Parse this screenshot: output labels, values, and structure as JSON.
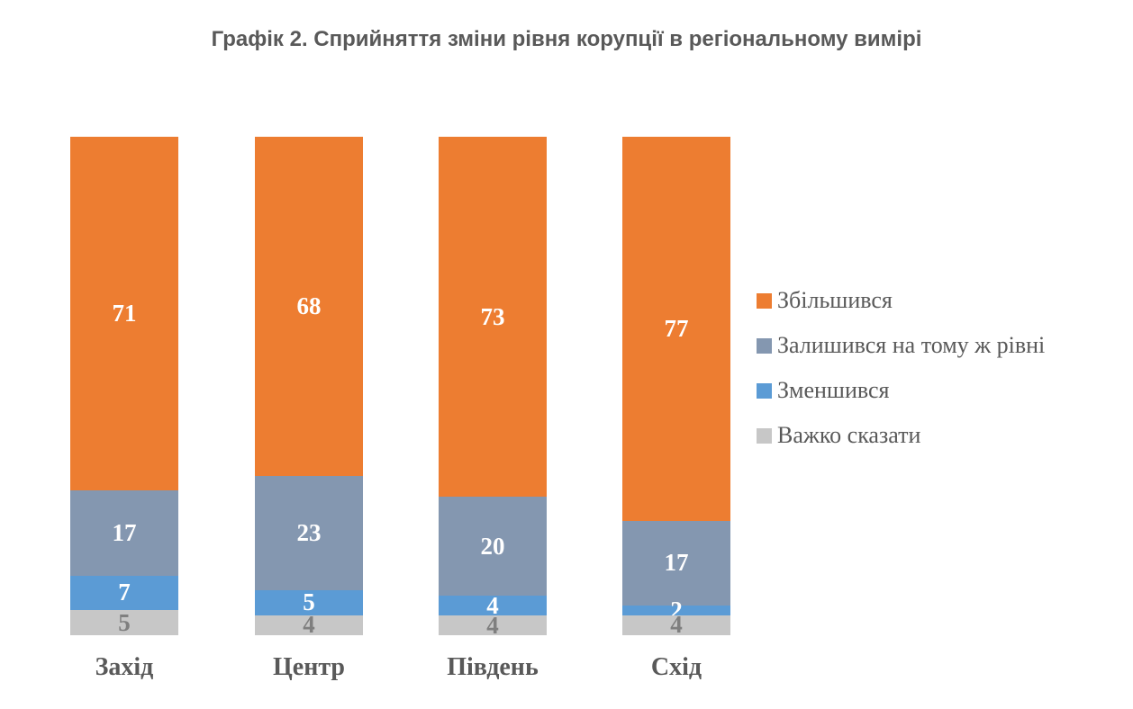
{
  "title": "Графік 2. Сприйняття зміни рівня корупції в регіональному вимірі",
  "background_color": "#FFFFFF",
  "chart_data": {
    "type": "bar",
    "subtype": "stacked-column-percent",
    "title": "Графік 2. Сприйняття зміни рівня корупції в регіональному вимірі",
    "title_color": "#595959",
    "xlabel": "",
    "ylabel": "",
    "grid": false,
    "axes_visible": false,
    "legend_position": "right",
    "categories": [
      "Захід",
      "Центр",
      "Південь",
      "Схід"
    ],
    "category_label_color": "#595959",
    "series": [
      {
        "name": "Збільшився",
        "color": "#ED7D31",
        "label_color": "#FFFFFF",
        "values": [
          71,
          68,
          73,
          77
        ]
      },
      {
        "name": "Залишився на тому ж рівні",
        "color": "#8497B0",
        "label_color": "#FFFFFF",
        "values": [
          17,
          23,
          20,
          17
        ]
      },
      {
        "name": "Зменшився",
        "color": "#5B9BD5",
        "label_color": "#FFFFFF",
        "values": [
          7,
          5,
          4,
          2
        ]
      },
      {
        "name": "Важко сказати",
        "color": "#C7C7C7",
        "label_color": "#7F7F7F",
        "values": [
          5,
          4,
          4,
          4
        ]
      }
    ]
  }
}
